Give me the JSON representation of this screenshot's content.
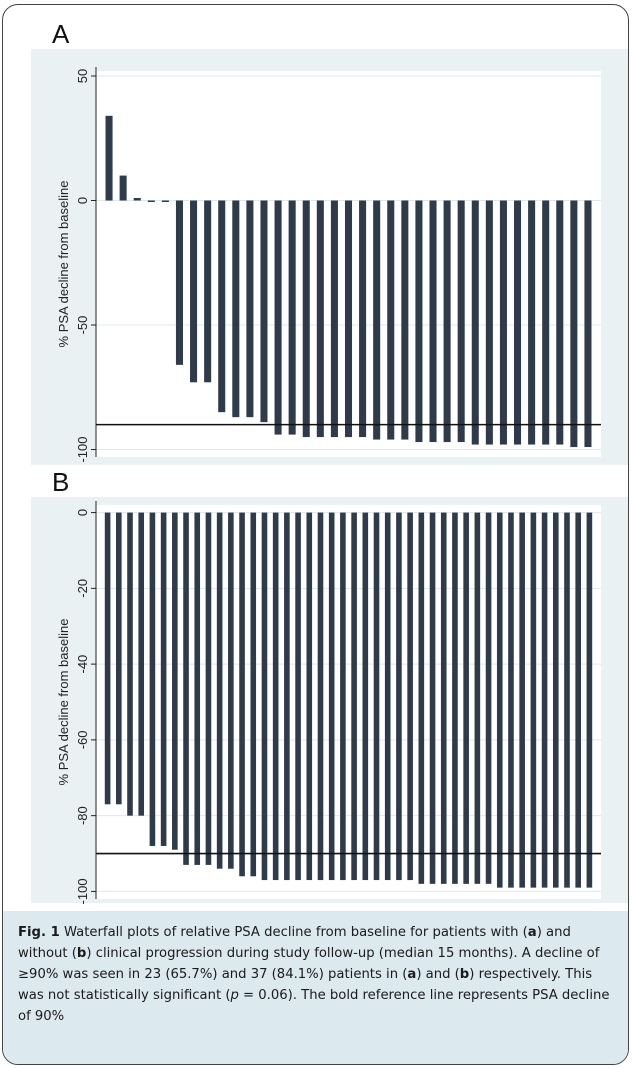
{
  "colors": {
    "panel_bg": "#e9f1f3",
    "plot_bg": "#ffffff",
    "bar": "#2f3b4a",
    "caption_bg": "#dce9ef",
    "ref_line": "#111111"
  },
  "panels": [
    {
      "letter": "A"
    },
    {
      "letter": "B"
    }
  ],
  "chart_data": [
    {
      "type": "bar",
      "panel": "A",
      "title": "",
      "xlabel": "",
      "ylabel": "% PSA decline from baseline",
      "ylim": [
        -103,
        52
      ],
      "yticks": [
        50,
        0,
        -50,
        -100
      ],
      "grid": true,
      "reference_line": {
        "y": -90,
        "label": ""
      },
      "values": [
        34,
        10,
        1,
        0,
        0,
        -66,
        -73,
        -73,
        -85,
        -87,
        -87,
        -89,
        -94,
        -94,
        -95,
        -95,
        -95,
        -95,
        -95,
        -96,
        -96,
        -96,
        -97,
        -97,
        -97,
        -97,
        -98,
        -98,
        -98,
        -98,
        -98,
        -98,
        -98,
        -99,
        -99
      ]
    },
    {
      "type": "bar",
      "panel": "B",
      "title": "",
      "xlabel": "",
      "ylabel": "% PSA decline from baseline",
      "ylim": [
        -102,
        2
      ],
      "yticks": [
        0,
        -20,
        -40,
        -60,
        -80,
        -100
      ],
      "grid": true,
      "reference_line": {
        "y": -90,
        "label": ""
      },
      "values": [
        -77,
        -77,
        -80,
        -80,
        -88,
        -88,
        -89,
        -93,
        -93,
        -93,
        -94,
        -94,
        -96,
        -96,
        -97,
        -97,
        -97,
        -97,
        -97,
        -97,
        -97,
        -97,
        -97,
        -97,
        -97,
        -97,
        -97,
        -97,
        -98,
        -98,
        -98,
        -98,
        -98,
        -98,
        -98,
        -99,
        -99,
        -99,
        -99,
        -99,
        -99,
        -99,
        -99,
        -99
      ]
    }
  ],
  "caption": {
    "fig_label": "Fig. 1",
    "t1": " Waterfall plots of relative PSA decline from baseline for patients with (",
    "a1": "a",
    "t2": ") and without (",
    "b1": "b",
    "t3": ") clinical progression during study follow-up (median 15 months). A decline of ≥90% was seen in 23 (65.7%) and 37 (84.1%) patients in (",
    "a2": "a",
    "t4": ") and (",
    "b2": "b",
    "t5": ") respectively. This was not statistically signifi­cant (",
    "p": "p",
    "t6": " = 0.06). The bold reference line represents PSA decline of 90%"
  }
}
